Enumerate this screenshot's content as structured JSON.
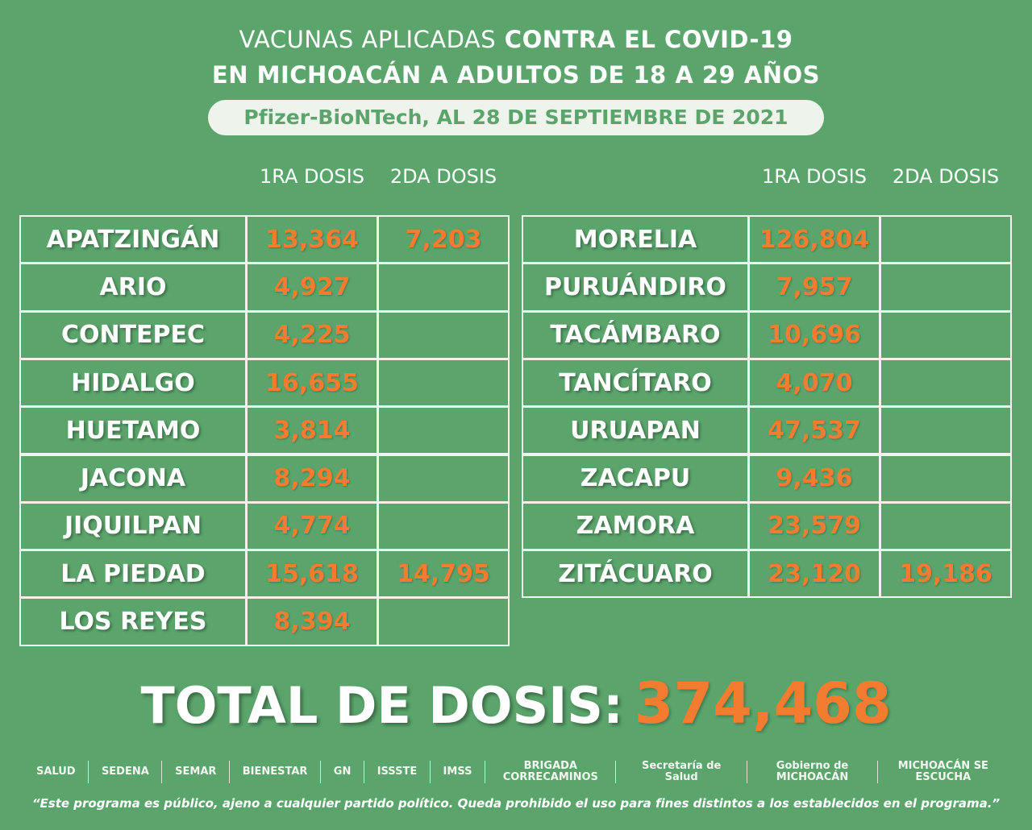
{
  "header": {
    "title_light": "VACUNAS APLICADAS",
    "title_bold": "CONTRA EL COVID-19",
    "title_line2": "EN MICHOACÁN A ADULTOS DE 18 A 29 AÑOS",
    "subtitle": "Pfizer-BioNTech, AL 28 DE SEPTIEMBRE DE 2021"
  },
  "tables": [
    {
      "columns": [
        "1RA DOSIS",
        "2DA DOSIS"
      ],
      "rows": [
        {
          "municipio": "APATZINGÁN",
          "dosis1": "13,364",
          "dosis2": "7,203"
        },
        {
          "municipio": "ARIO",
          "dosis1": "4,927"
        },
        {
          "municipio": "CONTEPEC",
          "dosis1": "4,225"
        },
        {
          "municipio": "HIDALGO",
          "dosis1": "16,655"
        },
        {
          "municipio": "HUETAMO",
          "dosis1": "3,814"
        },
        {
          "municipio": "JACONA",
          "dosis1": "8,294"
        },
        {
          "municipio": "JIQUILPAN",
          "dosis1": "4,774"
        },
        {
          "municipio": "LA PIEDAD",
          "dosis1": "15,618",
          "dosis2": "14,795"
        },
        {
          "municipio": "LOS REYES",
          "dosis1": "8,394"
        }
      ]
    },
    {
      "columns": [
        "1RA DOSIS",
        "2DA DOSIS"
      ],
      "rows": [
        {
          "municipio": "MORELIA",
          "dosis1": "126,804"
        },
        {
          "municipio": "PURUÁNDIRO",
          "dosis1": "7,957"
        },
        {
          "municipio": "TACÁMBARO",
          "dosis1": "10,696"
        },
        {
          "municipio": "TANCÍTARO",
          "dosis1": "4,070"
        },
        {
          "municipio": "URUAPAN",
          "dosis1": "47,537"
        },
        {
          "municipio": "ZACAPU",
          "dosis1": "9,436"
        },
        {
          "municipio": "ZAMORA",
          "dosis1": "23,579"
        },
        {
          "municipio": "ZITÁCUARO",
          "dosis1": "23,120",
          "dosis2": "19,186"
        }
      ]
    }
  ],
  "total": {
    "label": "TOTAL DE DOSIS:",
    "value": "374,468"
  },
  "logos": [
    "SALUD",
    "SEDENA",
    "SEMAR",
    "BIENESTAR",
    "GN",
    "ISSSTE",
    "IMSS",
    "BRIGADA CORRECAMINOS",
    "Secretaría de Salud",
    "Gobierno de MICHOACÁN",
    "MICHOACÁN SE ESCUCHA"
  ],
  "footer": "“Este programa es público, ajeno a cualquier partido político. Queda prohibido el uso para fines distintos a los establecidos en el programa.”"
}
